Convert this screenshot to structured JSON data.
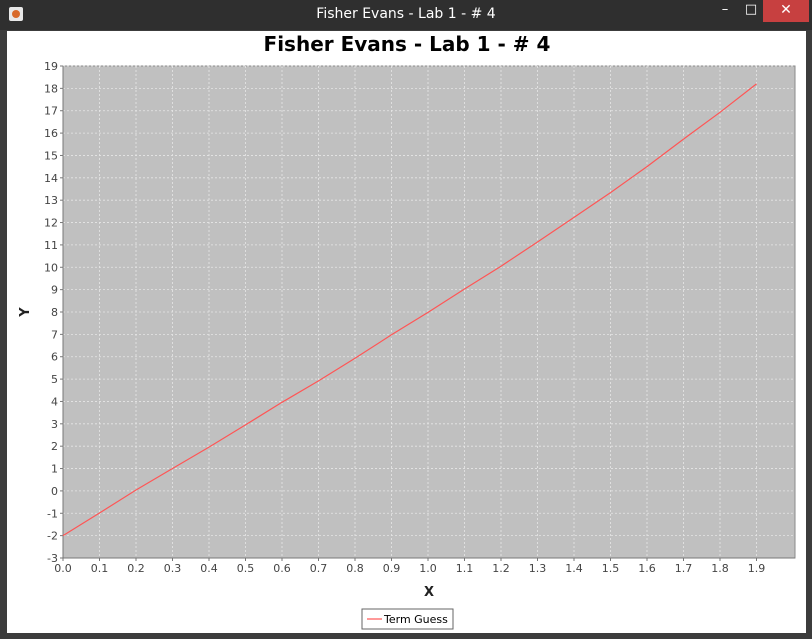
{
  "window": {
    "title": "Fisher Evans - Lab 1 - # 4",
    "minimize_glyph": "–",
    "maximize_glyph": "□",
    "close_glyph": "✕"
  },
  "chart_data": {
    "type": "line",
    "title": "Fisher Evans - Lab 1 - # 4",
    "xlabel": "X",
    "ylabel": "Y",
    "xlim": [
      0.0,
      1.9
    ],
    "ylim": [
      -3,
      19
    ],
    "xticks": [
      "0.0",
      "0.1",
      "0.2",
      "0.3",
      "0.4",
      "0.5",
      "0.6",
      "0.7",
      "0.8",
      "0.9",
      "1.0",
      "1.1",
      "1.2",
      "1.3",
      "1.4",
      "1.5",
      "1.6",
      "1.7",
      "1.8",
      "1.9"
    ],
    "yticks": [
      "-3",
      "-2",
      "-1",
      "0",
      "1",
      "2",
      "3",
      "4",
      "5",
      "6",
      "7",
      "8",
      "9",
      "10",
      "11",
      "12",
      "13",
      "14",
      "15",
      "16",
      "17",
      "18",
      "19"
    ],
    "grid": true,
    "legend_position": "bottom",
    "plot_background": "#c0c0c0",
    "series": [
      {
        "name": "Term Guess",
        "color": "#ff5555",
        "x": [
          0.0,
          0.1,
          0.2,
          0.3,
          0.4,
          0.5,
          0.6,
          0.7,
          0.8,
          0.9,
          1.0,
          1.1,
          1.2,
          1.3,
          1.4,
          1.5,
          1.6,
          1.7,
          1.8,
          1.9
        ],
        "y": [
          -2.0,
          -0.99,
          0.04,
          1.0,
          1.96,
          2.95,
          3.96,
          4.92,
          5.93,
          6.98,
          7.98,
          9.03,
          10.05,
          11.13,
          12.23,
          13.34,
          14.5,
          15.73,
          16.93,
          18.2
        ]
      }
    ]
  }
}
